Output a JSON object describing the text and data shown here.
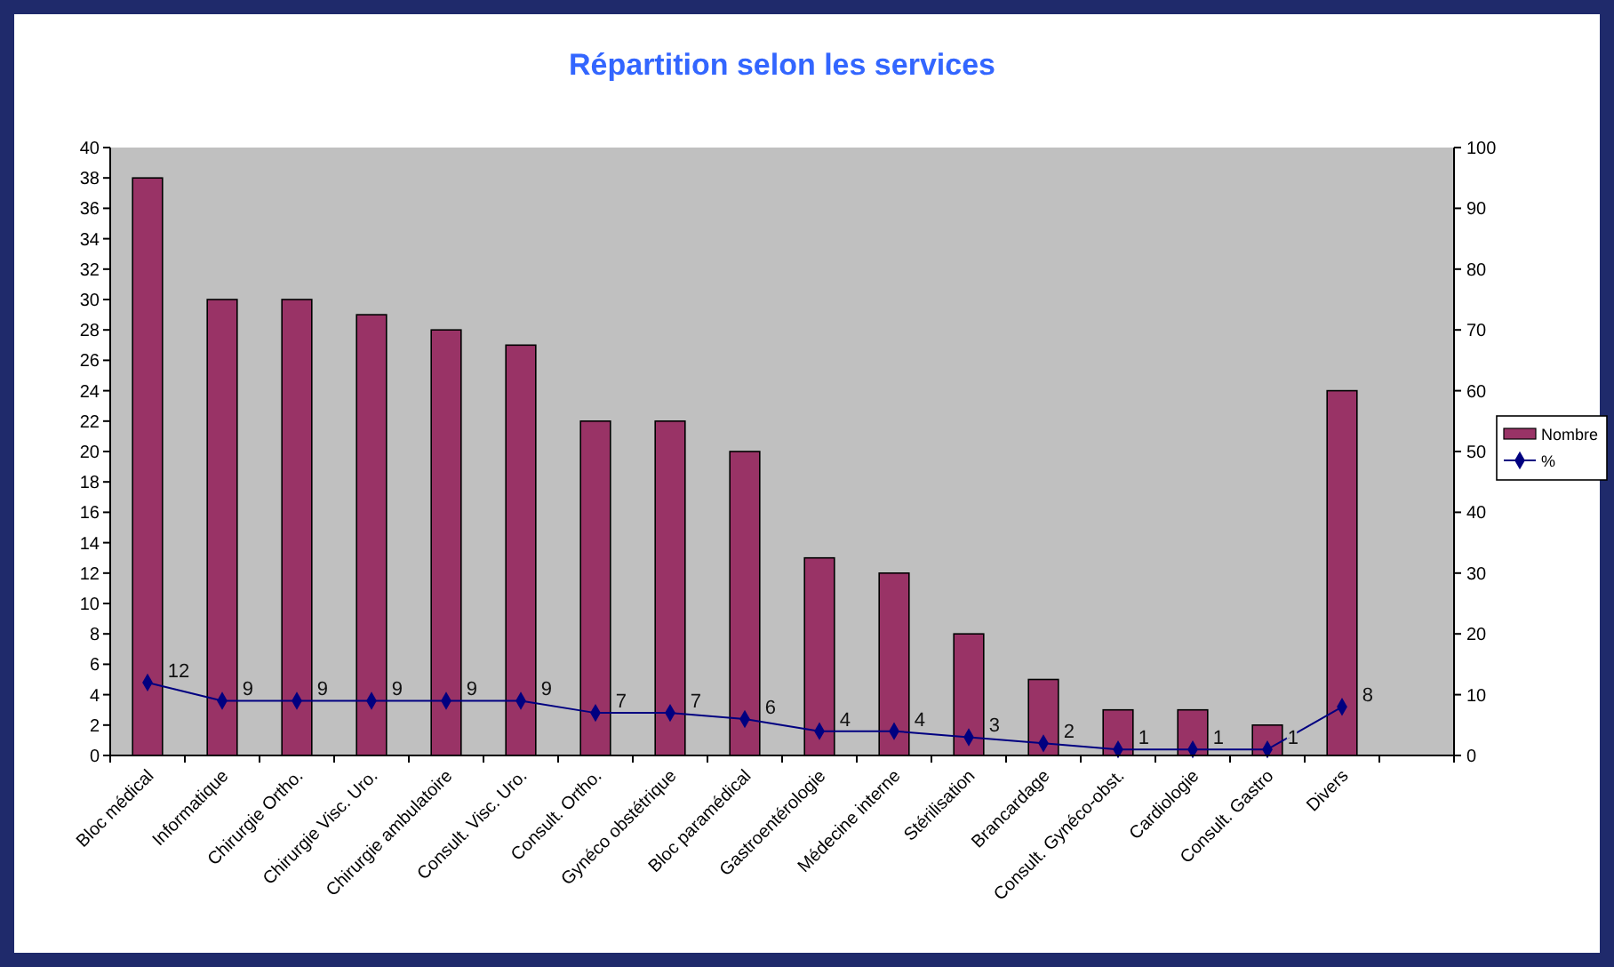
{
  "chart_data": {
    "type": "bar",
    "title": "Répartition selon les services",
    "categories": [
      "Bloc médical",
      "Informatique",
      "Chirurgie Ortho.",
      "Chirurgie Visc. Uro.",
      "Chirurgie ambulatoire",
      "Consult. Visc. Uro.",
      "Consult. Ortho.",
      "Gynéco obstétrique",
      "Bloc paramédical",
      "Gastroentérologie",
      "Médecine interne",
      "Stérilisation",
      "Brancardage",
      "Consult. Gynéco-obst.",
      "Cardiologie",
      "Consult. Gastro",
      "Divers",
      null
    ],
    "series": [
      {
        "name": "Nombre",
        "color": "#993366",
        "values": [
          38,
          30,
          30,
          29,
          28,
          27,
          22,
          22,
          20,
          13,
          12,
          8,
          5,
          3,
          3,
          2,
          24,
          null
        ]
      },
      {
        "name": "%",
        "type": "line",
        "axis": "y2",
        "color": "#000080",
        "marker": "diamond",
        "data_labels": true,
        "values": [
          12,
          9,
          9,
          9,
          9,
          9,
          7,
          7,
          6,
          4,
          4,
          3,
          2,
          1,
          1,
          1,
          8,
          null
        ]
      }
    ],
    "ylim": [
      0,
      40
    ],
    "yticks": [
      0,
      2,
      4,
      6,
      8,
      10,
      12,
      14,
      16,
      18,
      20,
      22,
      24,
      26,
      28,
      30,
      32,
      34,
      36,
      38,
      40
    ],
    "y2lim": [
      0,
      100
    ],
    "y2ticks": [
      0,
      10,
      20,
      30,
      40,
      50,
      60,
      70,
      80,
      90,
      100
    ],
    "grid": false,
    "legend": "right"
  }
}
